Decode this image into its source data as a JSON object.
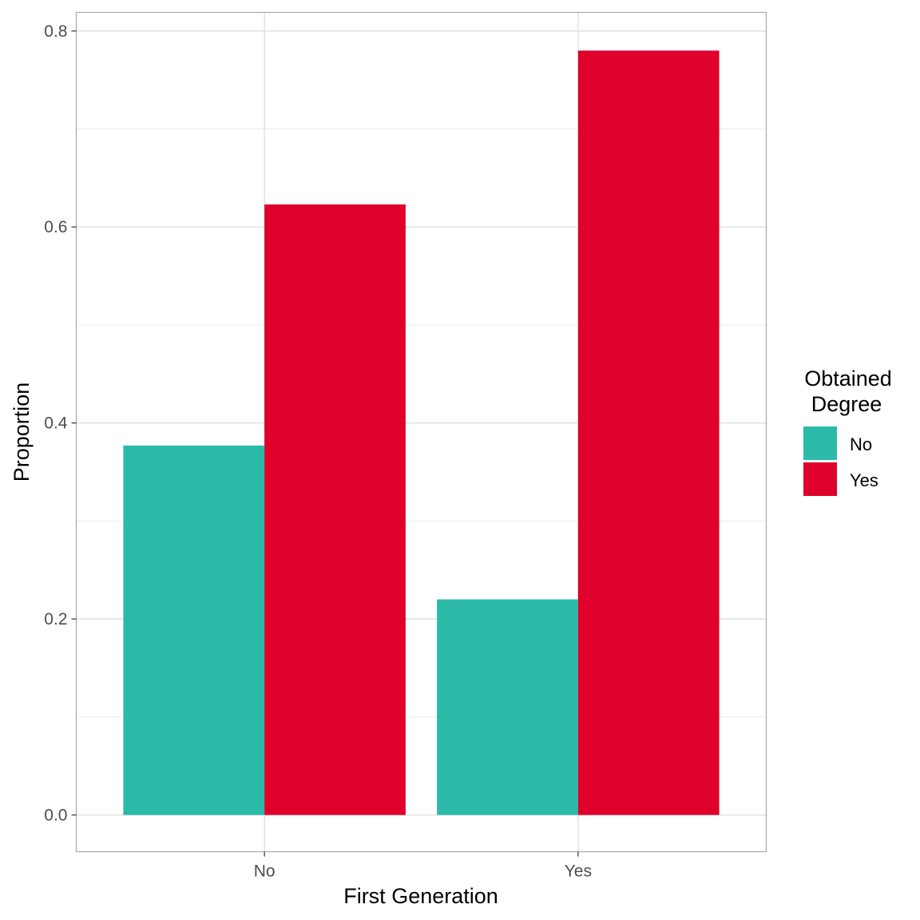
{
  "chart_data": {
    "type": "bar",
    "xlabel": "First Generation",
    "ylabel": "Proportion",
    "categories": [
      "No",
      "Yes"
    ],
    "series": [
      {
        "name": "No",
        "color": "#2CBAA8",
        "values": [
          0.377,
          0.22
        ]
      },
      {
        "name": "Yes",
        "color": "#DF002B",
        "values": [
          0.623,
          0.78
        ]
      }
    ],
    "ylim": [
      -0.0375,
      0.819
    ],
    "yticks": [
      0.0,
      0.2,
      0.4,
      0.6,
      0.8
    ],
    "ytick_labels": [
      "0.0",
      "0.2",
      "0.4",
      "0.6",
      "0.8"
    ],
    "grid": true,
    "legend": {
      "title_line1": "Obtained",
      "title_line2": "Degree",
      "placement": "right",
      "entries": [
        "No",
        "Yes"
      ]
    }
  }
}
